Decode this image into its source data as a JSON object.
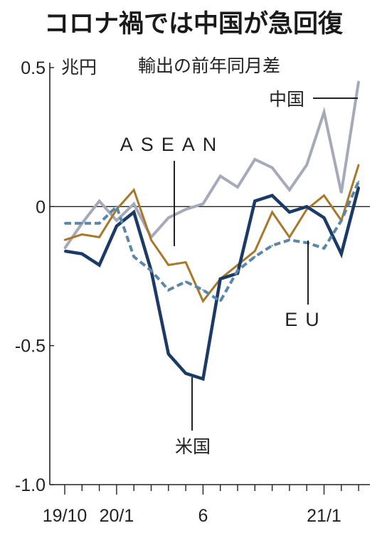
{
  "title": "コロナ禍では中国が急回復",
  "subtitle": "輸出の前年同月差",
  "unit": "兆円",
  "chart_data": {
    "type": "line",
    "title": "コロナ禍では中国が急回復",
    "subtitle": "輸出の前年同月差",
    "ylabel": "兆円",
    "ylim": [
      -1.0,
      0.5
    ],
    "y_ticks": [
      {
        "value": 0.5,
        "label": "0.5"
      },
      {
        "value": 0,
        "label": "0"
      },
      {
        "value": -0.5,
        "label": "-0.5"
      },
      {
        "value": -1.0,
        "label": "-1.0"
      }
    ],
    "x": [
      "2019/10",
      "2019/11",
      "2019/12",
      "2020/1",
      "2020/2",
      "2020/3",
      "2020/4",
      "2020/5",
      "2020/6",
      "2020/7",
      "2020/8",
      "2020/9",
      "2020/10",
      "2020/11",
      "2020/12",
      "2021/1",
      "2021/2",
      "2021/3"
    ],
    "x_tick_labels": [
      {
        "index": 0,
        "label": "19/10"
      },
      {
        "index": 3,
        "label": "20/1"
      },
      {
        "index": 8,
        "label": "6"
      },
      {
        "index": 15,
        "label": "21/1"
      }
    ],
    "series": [
      {
        "name": "中国",
        "color": "#a6a9b9",
        "style": "solid",
        "values": [
          -0.15,
          -0.06,
          0.02,
          -0.05,
          0.01,
          -0.11,
          -0.04,
          -0.01,
          0.01,
          0.11,
          0.07,
          0.17,
          0.14,
          0.06,
          0.15,
          0.34,
          0.05,
          0.45
        ]
      },
      {
        "name": "ASEAN",
        "color": "#a8772a",
        "style": "solid",
        "values": [
          -0.12,
          -0.1,
          -0.11,
          -0.01,
          0.06,
          -0.12,
          -0.21,
          -0.2,
          -0.34,
          -0.26,
          -0.21,
          -0.16,
          -0.02,
          -0.11,
          -0.01,
          0.04,
          -0.05,
          0.15
        ]
      },
      {
        "name": "米国",
        "color": "#1b3a66",
        "style": "solid",
        "values": [
          -0.16,
          -0.17,
          -0.21,
          -0.07,
          -0.02,
          -0.23,
          -0.53,
          -0.6,
          -0.62,
          -0.26,
          -0.24,
          0.02,
          0.04,
          -0.02,
          0.0,
          -0.04,
          -0.17,
          0.07
        ]
      },
      {
        "name": "EU",
        "color": "#5b87a6",
        "style": "dashed",
        "values": [
          -0.06,
          -0.06,
          -0.06,
          0.0,
          -0.18,
          -0.23,
          -0.3,
          -0.27,
          -0.3,
          -0.34,
          -0.23,
          -0.18,
          -0.14,
          -0.12,
          -0.13,
          -0.15,
          -0.05,
          0.09
        ]
      }
    ]
  }
}
